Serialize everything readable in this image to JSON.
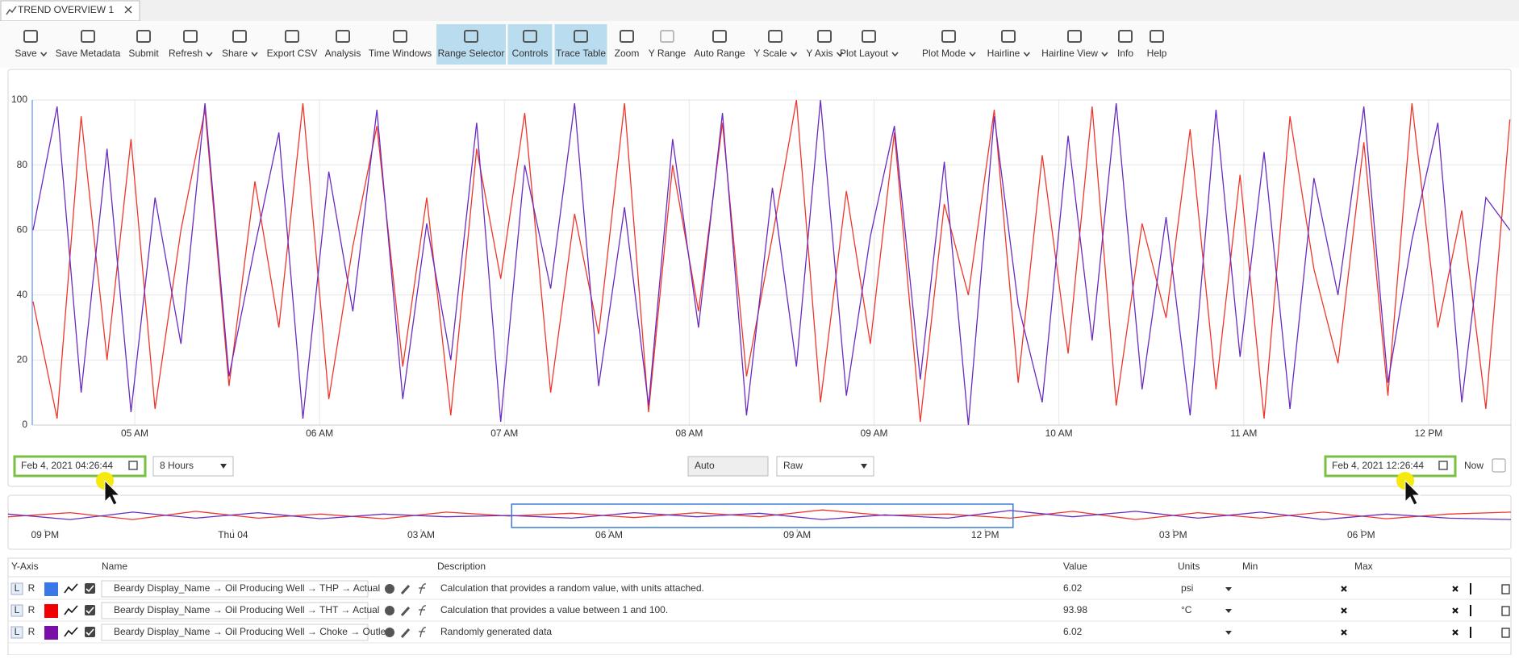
{
  "tab": {
    "title": "TREND OVERVIEW 1"
  },
  "toolbar": {
    "buttons": [
      {
        "label": "Save",
        "dropdown": true
      },
      {
        "label": "Save Metadata"
      },
      {
        "label": "Submit"
      },
      {
        "label": "Refresh",
        "dropdown": true
      },
      {
        "label": "Share",
        "dropdown": true
      },
      {
        "label": "Export CSV"
      },
      {
        "label": "Analysis"
      },
      {
        "label": "Time Windows"
      },
      {
        "label": "Range Selector",
        "active": true
      },
      {
        "label": "Controls",
        "active": true
      },
      {
        "label": "Trace Table",
        "active": true
      },
      {
        "label": "Zoom"
      },
      {
        "label": "Y Range",
        "disabled": true
      },
      {
        "label": "Auto Range"
      },
      {
        "label": "Y Scale",
        "dropdown": true
      },
      {
        "label": "Y Axis",
        "dropdown": true
      },
      {
        "label": "Plot Layout",
        "dropdown": true
      },
      {
        "label": "Plot Mode",
        "dropdown": true
      },
      {
        "label": "Hairline",
        "dropdown": true
      },
      {
        "label": "Hairline View",
        "dropdown": true
      },
      {
        "label": "Info"
      },
      {
        "label": "Help"
      }
    ]
  },
  "chart_data": [
    {
      "type": "line",
      "xlim": [
        4.4456,
        12.4456
      ],
      "ylim": [
        0,
        100
      ],
      "yticks": [
        0,
        20,
        40,
        60,
        80,
        100
      ],
      "grid": true,
      "axis_color": "#3b78e7",
      "xticks": [
        {
          "value": 5,
          "label": "05 AM"
        },
        {
          "value": 6,
          "label": "06 AM"
        },
        {
          "value": 7,
          "label": "07 AM"
        },
        {
          "value": 8,
          "label": "08 AM"
        },
        {
          "value": 9,
          "label": "09 AM"
        },
        {
          "value": 10,
          "label": "10 AM"
        },
        {
          "value": 11,
          "label": "11 AM"
        },
        {
          "value": 12,
          "label": "12 PM"
        }
      ],
      "x": [
        4.45,
        4.58,
        4.71,
        4.85,
        4.98,
        5.11,
        5.25,
        5.38,
        5.51,
        5.65,
        5.78,
        5.91,
        6.05,
        6.18,
        6.31,
        6.45,
        6.58,
        6.71,
        6.85,
        6.98,
        7.11,
        7.25,
        7.38,
        7.51,
        7.65,
        7.78,
        7.91,
        8.05,
        8.18,
        8.31,
        8.45,
        8.58,
        8.71,
        8.85,
        8.98,
        9.11,
        9.25,
        9.38,
        9.51,
        9.65,
        9.78,
        9.91,
        10.05,
        10.18,
        10.31,
        10.45,
        10.58,
        10.71,
        10.85,
        10.98,
        11.11,
        11.25,
        11.38,
        11.51,
        11.65,
        11.78,
        11.91,
        12.05,
        12.18,
        12.31,
        12.44
      ],
      "series": [
        {
          "color": "#f0362a",
          "values": [
            38,
            2,
            95,
            20,
            88,
            5,
            60,
            97,
            12,
            75,
            30,
            99,
            8,
            55,
            92,
            18,
            70,
            3,
            85,
            45,
            96,
            10,
            65,
            28,
            99,
            4,
            80,
            35,
            93,
            15,
            58,
            100,
            7,
            72,
            25,
            90,
            1,
            68,
            40,
            97,
            13,
            83,
            22,
            98,
            6,
            62,
            33,
            91,
            11,
            77,
            2,
            95,
            48,
            19,
            87,
            9,
            99,
            30,
            66,
            5,
            94
          ]
        },
        {
          "color": "#6a2bc0",
          "values": [
            60,
            98,
            10,
            85,
            4,
            70,
            25,
            99,
            15,
            55,
            90,
            2,
            78,
            35,
            97,
            8,
            62,
            20,
            93,
            1,
            80,
            42,
            99,
            12,
            67,
            6,
            88,
            30,
            96,
            3,
            73,
            18,
            100,
            9,
            58,
            92,
            14,
            81,
            0,
            95,
            37,
            7,
            89,
            26,
            99,
            11,
            64,
            3,
            97,
            21,
            84,
            5,
            76,
            40,
            98,
            13,
            57,
            93,
            7,
            70,
            60
          ]
        }
      ]
    },
    {
      "type": "line",
      "xlim": [
        -3.59,
        20.39
      ],
      "ylim": [
        0,
        100
      ],
      "xticks": [
        {
          "value": -3,
          "label": "09 PM"
        },
        {
          "value": 0,
          "label": "Thu 04"
        },
        {
          "value": 3,
          "label": "03 AM"
        },
        {
          "value": 6,
          "label": "06 AM"
        },
        {
          "value": 9,
          "label": "09 AM"
        },
        {
          "value": 12,
          "label": "12 PM"
        },
        {
          "value": 15,
          "label": "03 PM"
        },
        {
          "value": 18,
          "label": "06 PM"
        }
      ],
      "x": [
        -3.59,
        -2.6,
        -1.6,
        -0.6,
        0.4,
        1.4,
        2.4,
        3.4,
        4.4,
        5.4,
        6.4,
        7.4,
        8.4,
        9.4,
        10.4,
        11.4,
        12.4,
        13.4,
        14.4,
        15.4,
        16.4,
        17.4,
        18.4,
        19.4,
        20.39
      ],
      "series": [
        {
          "color": "#f0362a",
          "values": [
            45,
            60,
            35,
            65,
            40,
            55,
            38,
            62,
            48,
            58,
            42,
            60,
            45,
            70,
            50,
            55,
            40,
            65,
            35,
            60,
            40,
            62,
            38,
            55,
            62
          ]
        },
        {
          "color": "#6a2bc0",
          "values": [
            55,
            35,
            62,
            40,
            60,
            38,
            55,
            45,
            50,
            40,
            60,
            45,
            58,
            35,
            52,
            40,
            68,
            45,
            65,
            40,
            62,
            35,
            55,
            40,
            35
          ]
        }
      ]
    }
  ],
  "controls": {
    "start": "Feb 4, 2021 04:26:44",
    "duration": "8 Hours",
    "mode": "Auto",
    "sampling": "Raw",
    "end": "Feb 4, 2021 12:26:44",
    "now_label": "Now"
  },
  "table": {
    "headers": [
      "Y-Axis",
      "Name",
      "Description",
      "Value",
      "Units",
      "Min",
      "Max"
    ],
    "axis_buttons": [
      "L",
      "R"
    ],
    "rows": [
      {
        "color": "#3b78e7",
        "name": "Beardy Display_Name → Oil Producing Well → THP → Actual",
        "description": "Calculation that provides a random value, with units attached.",
        "value": "6.02",
        "units": "psi"
      },
      {
        "color": "#f00000",
        "name": "Beardy Display_Name → Oil Producing Well → THT → Actual",
        "description": "Calculation that provides a value between 1 and 100.",
        "value": "93.98",
        "units": "°C"
      },
      {
        "color": "#7a0fa8",
        "name": "Beardy Display_Name → Oil Producing Well → Choke → Outle...",
        "description": "Randomly generated data",
        "value": "6.02"
      }
    ]
  }
}
